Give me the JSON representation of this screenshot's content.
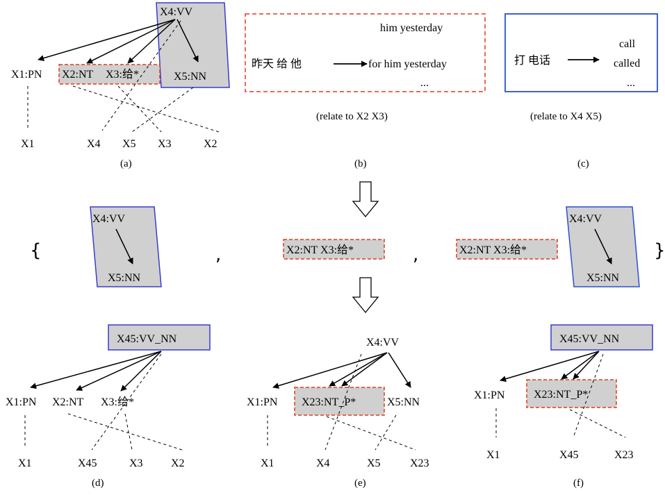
{
  "panel_a": {
    "root": "X4:VV",
    "child_pn": "X1:PN",
    "child_nt": "X2:NT",
    "child_gei": "X3:给*",
    "child_nn": "X5:NN",
    "targets": [
      "X1",
      "X4",
      "X5",
      "X3",
      "X2"
    ],
    "caption": "(a)"
  },
  "panel_b": {
    "source": "昨天 给 他",
    "options": [
      "him yesterday",
      "for him yesterday",
      "..."
    ],
    "caption": "(b)",
    "relate": "(relate to X2 X3)"
  },
  "panel_c": {
    "source": "打  电话",
    "options": [
      "call",
      "called",
      "..."
    ],
    "caption": "(c)",
    "relate": "(relate to X4 X5)"
  },
  "set_row": {
    "open_brace": "{",
    "close_brace": "}",
    "comma": ",",
    "item1_top": "X4:VV",
    "item1_bottom": "X5:NN",
    "item2": "X2:NT X3:给*",
    "item3_left": "X2:NT X3:给*",
    "item3_top": "X4:VV",
    "item3_bottom": "X5:NN"
  },
  "panel_d": {
    "root": "X45:VV_NN",
    "children": [
      "X1:PN",
      "X2:NT",
      "X3:给*"
    ],
    "targets": [
      "X1",
      "X45",
      "X3",
      "X2"
    ],
    "caption": "(d)"
  },
  "panel_e": {
    "root": "X4:VV",
    "child_pn": "X1:PN",
    "merged": "X23:NT_P*",
    "child_nn": "X5:NN",
    "targets": [
      "X1",
      "X4",
      "X5",
      "X23"
    ],
    "caption": "(e)"
  },
  "panel_f": {
    "root": "X45:VV_NN",
    "child_pn": "X1:PN",
    "merged": "X23:NT_P*",
    "targets": [
      "X1",
      "X45",
      "X23"
    ],
    "caption": "(f)"
  },
  "colors": {
    "blue": "#3a3acc",
    "red": "#e03a1e",
    "fill": "#d0d0d0"
  }
}
